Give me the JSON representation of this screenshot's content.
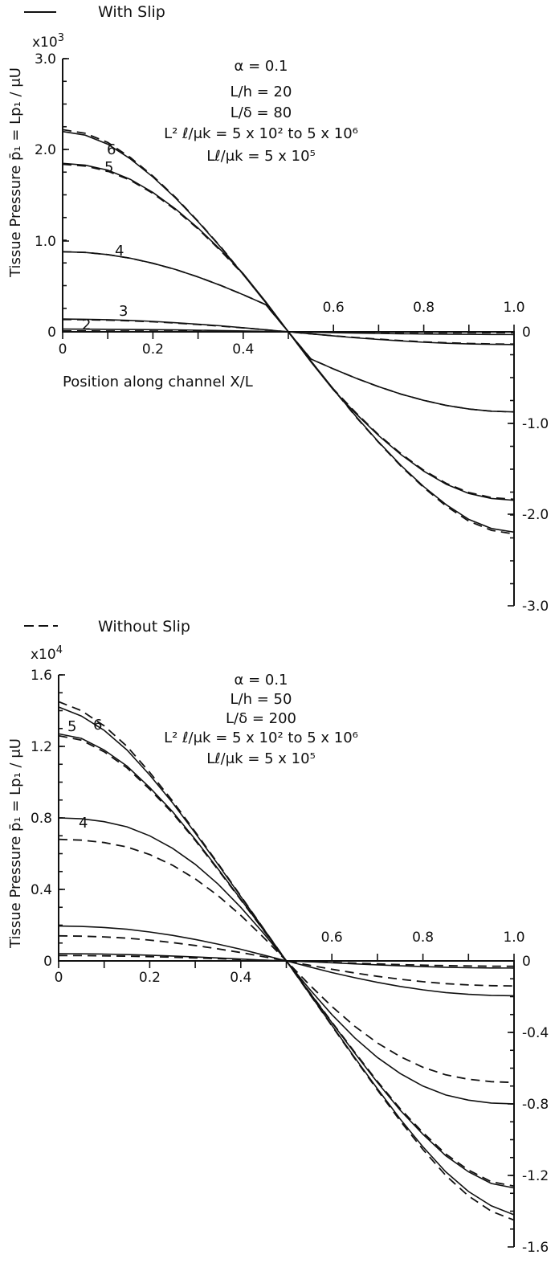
{
  "legend": {
    "solid_label": "With Slip",
    "dashed_label": "Without Slip"
  },
  "chart_data": [
    {
      "type": "line",
      "ylabel": "Tissue   Pressure   p̄₁ = Lp₁ / μU",
      "xlabel": "Position along channel  X/L",
      "y_multiplier": "x10",
      "y_multiplier_exp": "3",
      "xlim": [
        0,
        1
      ],
      "ylim": [
        -3000,
        3000
      ],
      "x_ticks_bottom": [
        "0",
        "0.2",
        "0.4"
      ],
      "x_ticks_top": [
        "0.6",
        "0.8",
        "1.0"
      ],
      "y_ticks_left": [
        "3.0",
        "2.0",
        "1.0",
        "0"
      ],
      "y_ticks_right": [
        "0",
        "-1.0",
        "-2.0",
        "-3.0"
      ],
      "params": [
        "α = 0.1",
        "L/h = 20",
        "L/δ = 80",
        "L² ℓ/μk = 5 x 10²  to  5 x 10⁶",
        "Lℓ/μk = 5 x 10⁵"
      ],
      "curve_labels": [
        "2",
        "3",
        "4",
        "5",
        "6"
      ],
      "x": [
        0,
        0.05,
        0.1,
        0.15,
        0.2,
        0.25,
        0.3,
        0.35,
        0.4,
        0.45,
        0.5,
        0.55,
        0.6,
        0.65,
        0.7,
        0.75,
        0.8,
        0.85,
        0.9,
        0.95,
        1.0
      ],
      "series": [
        {
          "label": "2",
          "slip": true,
          "values": [
            30,
            29,
            27,
            26,
            24,
            21,
            18,
            14,
            10,
            5,
            0,
            -5,
            -10,
            -14,
            -18,
            -21,
            -24,
            -26,
            -27,
            -29,
            -30
          ]
        },
        {
          "label": "2",
          "slip": false,
          "values": [
            10,
            10,
            9,
            9,
            8,
            7,
            6,
            5,
            3,
            2,
            0,
            -2,
            -3,
            -5,
            -6,
            -7,
            -8,
            -9,
            -9,
            -10,
            -10
          ]
        },
        {
          "label": "3",
          "slip": true,
          "values": [
            140,
            138,
            133,
            125,
            115,
            100,
            84,
            66,
            45,
            23,
            0,
            -23,
            -45,
            -66,
            -84,
            -100,
            -115,
            -125,
            -133,
            -138,
            -140
          ]
        },
        {
          "label": "3",
          "slip": false,
          "values": [
            135,
            133,
            128,
            120,
            110,
            96,
            80,
            63,
            43,
            22,
            0,
            -22,
            -43,
            -63,
            -80,
            -96,
            -110,
            -120,
            -128,
            -133,
            -135
          ]
        },
        {
          "label": "4",
          "slip": true,
          "values": [
            880,
            872,
            848,
            808,
            753,
            685,
            603,
            510,
            408,
            298,
            0,
            -298,
            -408,
            -510,
            -603,
            -685,
            -753,
            -808,
            -848,
            -872,
            -880
          ]
        },
        {
          "label": "4",
          "slip": false,
          "values": [
            880,
            872,
            848,
            808,
            753,
            685,
            603,
            510,
            408,
            298,
            0,
            -298,
            -408,
            -510,
            -603,
            -685,
            -753,
            -808,
            -848,
            -872,
            -880
          ]
        },
        {
          "label": "5",
          "slip": true,
          "values": [
            1850,
            1830,
            1775,
            1675,
            1530,
            1350,
            1140,
            900,
            640,
            330,
            0,
            -330,
            -640,
            -900,
            -1140,
            -1350,
            -1530,
            -1675,
            -1775,
            -1830,
            -1850
          ]
        },
        {
          "label": "5",
          "slip": false,
          "values": [
            1840,
            1820,
            1765,
            1665,
            1520,
            1340,
            1130,
            890,
            630,
            325,
            0,
            -325,
            -630,
            -890,
            -1130,
            -1340,
            -1520,
            -1665,
            -1765,
            -1820,
            -1840
          ]
        },
        {
          "label": "6",
          "slip": true,
          "values": [
            2200,
            2160,
            2060,
            1900,
            1700,
            1470,
            1210,
            930,
            630,
            320,
            0,
            -320,
            -630,
            -930,
            -1210,
            -1470,
            -1700,
            -1900,
            -2060,
            -2160,
            -2200
          ]
        },
        {
          "label": "6",
          "slip": false,
          "values": [
            2220,
            2180,
            2080,
            1915,
            1710,
            1478,
            1215,
            935,
            632,
            321,
            0,
            -321,
            -632,
            -935,
            -1215,
            -1478,
            -1710,
            -1915,
            -2080,
            -2180,
            -2220
          ]
        }
      ]
    },
    {
      "type": "line",
      "ylabel": "Tissue   Pressure   p̄₁ = Lp₁ / μU",
      "y_multiplier": "x10",
      "y_multiplier_exp": "4",
      "xlim": [
        0,
        1
      ],
      "ylim": [
        -16000,
        16000
      ],
      "x_ticks_bottom": [
        "0",
        "0.2",
        "0.4"
      ],
      "x_ticks_top": [
        "0.6",
        "0.8",
        "1.0"
      ],
      "y_ticks_left": [
        "1.6",
        "1.2",
        "0.8",
        "0.4",
        "0"
      ],
      "y_ticks_right": [
        "0",
        "-0.4",
        "-0.8",
        "-1.2",
        "-1.6"
      ],
      "params": [
        "α = 0.1",
        "L/h = 50",
        "L/δ = 200",
        "L² ℓ/μk = 5 x 10² to  5 x 10⁶",
        "Lℓ/μk = 5 x 10⁵"
      ],
      "curve_labels": [
        "4",
        "5",
        "6"
      ],
      "x": [
        0,
        0.05,
        0.1,
        0.15,
        0.2,
        0.25,
        0.3,
        0.35,
        0.4,
        0.45,
        0.5,
        0.55,
        0.6,
        0.65,
        0.7,
        0.75,
        0.8,
        0.85,
        0.9,
        0.95,
        1.0
      ],
      "series": [
        {
          "label": "2",
          "slip": true,
          "values": [
            400,
            395,
            380,
            355,
            320,
            275,
            222,
            165,
            105,
            45,
            0,
            -45,
            -105,
            -165,
            -222,
            -275,
            -320,
            -355,
            -380,
            -395,
            -400
          ]
        },
        {
          "label": "2",
          "slip": false,
          "values": [
            300,
            296,
            285,
            266,
            240,
            206,
            166,
            124,
            79,
            34,
            0,
            -34,
            -79,
            -124,
            -166,
            -206,
            -240,
            -266,
            -285,
            -296,
            -300
          ]
        },
        {
          "label": "3",
          "slip": true,
          "values": [
            1950,
            1930,
            1870,
            1770,
            1620,
            1430,
            1200,
            940,
            650,
            330,
            0,
            -330,
            -650,
            -940,
            -1200,
            -1430,
            -1620,
            -1770,
            -1870,
            -1930,
            -1950
          ]
        },
        {
          "label": "3",
          "slip": false,
          "values": [
            1400,
            1385,
            1342,
            1270,
            1163,
            1026,
            861,
            675,
            467,
            237,
            0,
            -237,
            -467,
            -675,
            -861,
            -1026,
            -1163,
            -1270,
            -1342,
            -1385,
            -1400
          ]
        },
        {
          "label": "4",
          "slip": true,
          "values": [
            8000,
            7950,
            7790,
            7500,
            7000,
            6300,
            5400,
            4300,
            3000,
            1550,
            0,
            -1550,
            -3000,
            -4300,
            -5400,
            -6300,
            -7000,
            -7500,
            -7790,
            -7950,
            -8000
          ]
        },
        {
          "label": "4",
          "slip": false,
          "values": [
            6800,
            6757,
            6622,
            6375,
            5950,
            5355,
            4590,
            3655,
            2550,
            1318,
            0,
            -1318,
            -2550,
            -3655,
            -4590,
            -5355,
            -5950,
            -6375,
            -6622,
            -6757,
            -6800
          ]
        },
        {
          "label": "5",
          "slip": true,
          "values": [
            12700,
            12450,
            11800,
            10900,
            9700,
            8350,
            6800,
            5150,
            3450,
            1730,
            0,
            -1730,
            -3450,
            -5150,
            -6800,
            -8350,
            -9700,
            -10900,
            -11800,
            -12450,
            -12700
          ]
        },
        {
          "label": "5",
          "slip": false,
          "values": [
            12600,
            12350,
            11700,
            10800,
            9600,
            8270,
            6740,
            5100,
            3420,
            1715,
            0,
            -1715,
            -3420,
            -5100,
            -6740,
            -8270,
            -9600,
            -10800,
            -11700,
            -12350,
            -12600
          ]
        },
        {
          "label": "6",
          "slip": true,
          "values": [
            14200,
            13700,
            12900,
            11800,
            10400,
            8850,
            7150,
            5400,
            3600,
            1800,
            0,
            -1800,
            -3600,
            -5400,
            -7150,
            -8850,
            -10400,
            -11800,
            -12900,
            -13700,
            -14200
          ]
        },
        {
          "label": "6",
          "slip": false,
          "values": [
            14500,
            14000,
            13150,
            12000,
            10550,
            8950,
            7220,
            5450,
            3630,
            1815,
            0,
            -1815,
            -3630,
            -5450,
            -7220,
            -8950,
            -10550,
            -12000,
            -13150,
            -14000,
            -14500
          ]
        }
      ]
    }
  ]
}
